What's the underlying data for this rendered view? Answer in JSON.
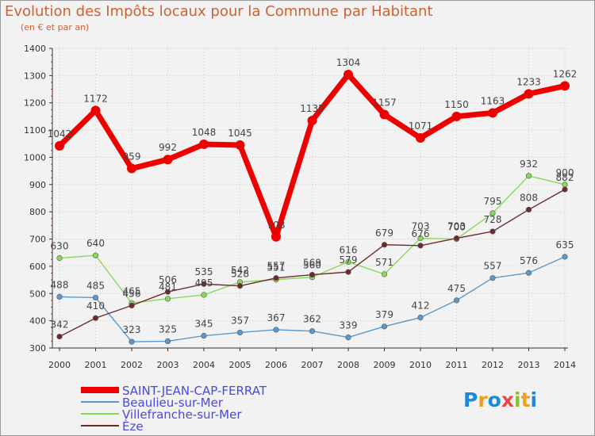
{
  "title": "Evolution des Impôts locaux pour la Commune par Habitant",
  "subtitle": "(en € et par an)",
  "logo": "Proxiti",
  "colors": {
    "title": "#d06032",
    "axis": "#333333",
    "label": "#444444",
    "legend_text": "#4a4ad8"
  },
  "chart_data": {
    "type": "line",
    "title": "Evolution des Impôts locaux pour la Commune par Habitant",
    "subtitle": "(en € et par an)",
    "xlabel": "",
    "ylabel": "",
    "ylim": [
      300,
      1400
    ],
    "yticks": [
      300,
      400,
      500,
      600,
      700,
      800,
      900,
      1000,
      1100,
      1200,
      1300,
      1400
    ],
    "grid": true,
    "legend_position": "bottom-left",
    "categories": [
      "2000",
      "2001",
      "2002",
      "2003",
      "2004",
      "2005",
      "2006",
      "2007",
      "2008",
      "2009",
      "2010",
      "2011",
      "2012",
      "2013",
      "2014"
    ],
    "series": [
      {
        "name": "SAINT-JEAN-CAP-FERRAT",
        "color": "#ee0000",
        "values": [
          1042,
          1172,
          959,
          992,
          1048,
          1045,
          708,
          1135,
          1304,
          1157,
          1071,
          1150,
          1163,
          1233,
          1262
        ]
      },
      {
        "name": "Beaulieu-sur-Mer",
        "color": "#5a98cc",
        "values": [
          488,
          485,
          323,
          325,
          345,
          357,
          367,
          362,
          339,
          379,
          412,
          475,
          557,
          576,
          635
        ]
      },
      {
        "name": "Villefranche-sur-Mer",
        "color": "#88d85a",
        "values": [
          630,
          640,
          465,
          481,
          495,
          542,
          551,
          560,
          616,
          571,
          703,
          700,
          795,
          932,
          900
        ]
      },
      {
        "name": "Èze",
        "color": "#6e2b2b",
        "values": [
          342,
          410,
          456,
          506,
          535,
          528,
          557,
          569,
          579,
          679,
          676,
          703,
          728,
          808,
          882
        ]
      }
    ]
  }
}
